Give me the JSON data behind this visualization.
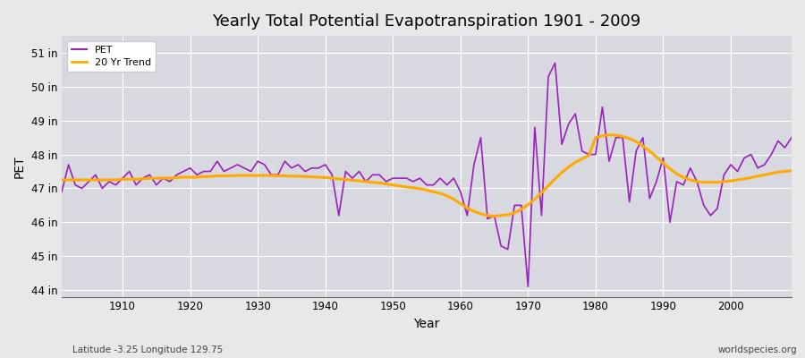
{
  "title": "Yearly Total Potential Evapotranspiration 1901 - 2009",
  "xlabel": "Year",
  "ylabel": "PET",
  "subtitle_left": "Latitude -3.25 Longitude 129.75",
  "subtitle_right": "worldspecies.org",
  "bg_color": "#e8e8e8",
  "plot_bg_color": "#d8d8e0",
  "pet_color": "#9922bb",
  "trend_color": "#ffaa00",
  "ylim": [
    43.8,
    51.5
  ],
  "yticks": [
    44,
    45,
    46,
    47,
    48,
    49,
    50,
    51
  ],
  "ytick_labels": [
    "44 in",
    "45 in",
    "46 in",
    "47 in",
    "48 in",
    "49 in",
    "50 in",
    "51 in"
  ],
  "years": [
    1901,
    1902,
    1903,
    1904,
    1905,
    1906,
    1907,
    1908,
    1909,
    1910,
    1911,
    1912,
    1913,
    1914,
    1915,
    1916,
    1917,
    1918,
    1919,
    1920,
    1921,
    1922,
    1923,
    1924,
    1925,
    1926,
    1927,
    1928,
    1929,
    1930,
    1931,
    1932,
    1933,
    1934,
    1935,
    1936,
    1937,
    1938,
    1939,
    1940,
    1941,
    1942,
    1943,
    1944,
    1945,
    1946,
    1947,
    1948,
    1949,
    1950,
    1951,
    1952,
    1953,
    1954,
    1955,
    1956,
    1957,
    1958,
    1959,
    1960,
    1961,
    1962,
    1963,
    1964,
    1965,
    1966,
    1967,
    1968,
    1969,
    1970,
    1971,
    1972,
    1973,
    1974,
    1975,
    1976,
    1977,
    1978,
    1979,
    1980,
    1981,
    1982,
    1983,
    1984,
    1985,
    1986,
    1987,
    1988,
    1989,
    1990,
    1991,
    1992,
    1993,
    1994,
    1995,
    1996,
    1997,
    1998,
    1999,
    2000,
    2001,
    2002,
    2003,
    2004,
    2005,
    2006,
    2007,
    2008,
    2009
  ],
  "pet_values": [
    46.9,
    47.7,
    47.1,
    47.0,
    47.2,
    47.4,
    47.0,
    47.2,
    47.1,
    47.3,
    47.5,
    47.1,
    47.3,
    47.4,
    47.1,
    47.3,
    47.2,
    47.4,
    47.5,
    47.6,
    47.4,
    47.5,
    47.5,
    47.8,
    47.5,
    47.6,
    47.7,
    47.6,
    47.5,
    47.8,
    47.7,
    47.4,
    47.4,
    47.8,
    47.6,
    47.7,
    47.5,
    47.6,
    47.6,
    47.7,
    47.4,
    46.2,
    47.5,
    47.3,
    47.5,
    47.2,
    47.4,
    47.4,
    47.2,
    47.3,
    47.3,
    47.3,
    47.2,
    47.3,
    47.1,
    47.1,
    47.3,
    47.1,
    47.3,
    46.9,
    46.2,
    47.7,
    48.5,
    46.1,
    46.2,
    45.3,
    45.2,
    46.5,
    46.5,
    44.1,
    48.8,
    46.2,
    50.3,
    50.7,
    48.3,
    48.9,
    49.2,
    48.1,
    48.0,
    48.0,
    49.4,
    47.8,
    48.5,
    48.5,
    46.6,
    48.1,
    48.5,
    46.7,
    47.2,
    47.9,
    46.0,
    47.2,
    47.1,
    47.6,
    47.2,
    46.5,
    46.2,
    46.4,
    47.4,
    47.7,
    47.5,
    47.9,
    48.0,
    47.6,
    47.7,
    48.0,
    48.4,
    48.2,
    48.5
  ],
  "trend_values": [
    47.25,
    47.25,
    47.25,
    47.25,
    47.25,
    47.25,
    47.25,
    47.25,
    47.25,
    47.27,
    47.27,
    47.27,
    47.28,
    47.3,
    47.3,
    47.3,
    47.3,
    47.32,
    47.33,
    47.33,
    47.33,
    47.35,
    47.35,
    47.37,
    47.37,
    47.37,
    47.38,
    47.38,
    47.38,
    47.38,
    47.38,
    47.38,
    47.37,
    47.37,
    47.36,
    47.36,
    47.35,
    47.34,
    47.33,
    47.32,
    47.3,
    47.28,
    47.26,
    47.24,
    47.22,
    47.2,
    47.18,
    47.16,
    47.13,
    47.1,
    47.07,
    47.04,
    47.02,
    46.99,
    46.95,
    46.9,
    46.85,
    46.78,
    46.68,
    46.55,
    46.42,
    46.32,
    46.25,
    46.2,
    46.18,
    46.2,
    46.22,
    46.28,
    46.38,
    46.52,
    46.68,
    46.87,
    47.08,
    47.28,
    47.47,
    47.63,
    47.77,
    47.87,
    47.97,
    48.5,
    48.55,
    48.58,
    48.57,
    48.53,
    48.47,
    48.38,
    48.25,
    48.1,
    47.93,
    47.75,
    47.58,
    47.43,
    47.32,
    47.25,
    47.2,
    47.18,
    47.18,
    47.18,
    47.2,
    47.22,
    47.25,
    47.28,
    47.32,
    47.36,
    47.4,
    47.44,
    47.48,
    47.5,
    47.52
  ]
}
